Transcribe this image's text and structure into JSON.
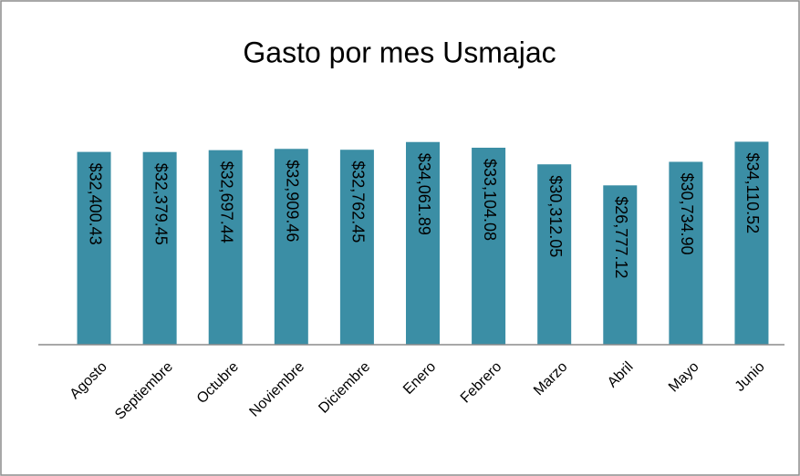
{
  "chart_data": {
    "type": "bar",
    "title": "Gasto por mes Usmajac",
    "categories": [
      "Agosto",
      "Septiembre",
      "Octubre",
      "Noviembre",
      "Diciembre",
      "Enero",
      "Febrero",
      "Marzo",
      "Abril",
      "Mayo",
      "Junio"
    ],
    "values": [
      32400.43,
      32379.45,
      32697.44,
      32909.46,
      32762.45,
      34061.89,
      33104.08,
      30312.05,
      26777.12,
      30734.9,
      34110.52
    ],
    "value_labels": [
      "$32,400.43",
      "$32,379.45",
      "$32,697.44",
      "$32,909.46",
      "$32,762.45",
      "$34,061.89",
      "$33,104.08",
      "$30,312.05",
      "$26,777.12",
      "$30,734.90",
      "$34,110.52"
    ],
    "color": "#3b8ea5",
    "ylim": [
      0,
      40000
    ]
  }
}
